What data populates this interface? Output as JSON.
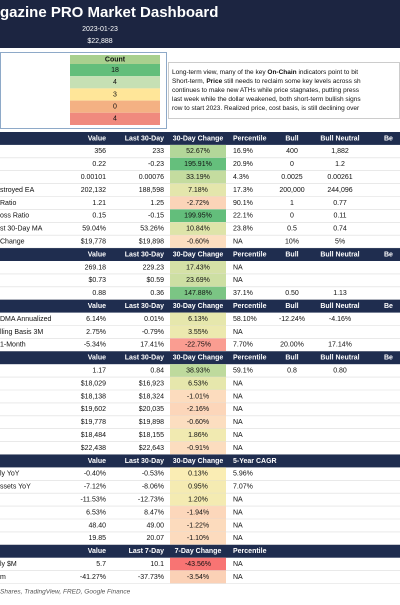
{
  "header": {
    "title": "gazine PRO Market Dashboard",
    "date": "2023-01-23",
    "price": "$22,888"
  },
  "count_panel": {
    "title": "Count",
    "rows": [
      {
        "value": "18",
        "color": "#63be7b"
      },
      {
        "value": "4",
        "color": "#c6e0b4"
      },
      {
        "value": "3",
        "color": "#ffe699"
      },
      {
        "value": "0",
        "color": "#f4b183"
      },
      {
        "value": "4",
        "color": "#f08a7e"
      }
    ]
  },
  "summary": [
    [
      "Long-term view, many of the key ",
      "On-Chain",
      " indicators point to bit"
    ],
    [
      "Short-term, ",
      "Price",
      " still needs to reclaim some key levels across sh"
    ],
    [
      "continues to make new ATHs while price stagnates, putting press"
    ],
    [
      "last week while the dollar weakened, both short-term bullish signs"
    ],
    [
      "row to start 2023. Realized price, cost basis, is still declining over"
    ]
  ],
  "table": {
    "sections": [
      {
        "header": [
          "Value",
          "Last 30-Day",
          "30-Day Change",
          "Percentile",
          "Bull",
          "Bull Neutral",
          "Be"
        ],
        "rows": [
          {
            "cells": [
              "356",
              "233",
              "52.67%",
              "16.9%",
              "400",
              "1,882"
            ]
          },
          {
            "cells": [
              "0.22",
              "-0.23",
              "195.91%",
              "20.9%",
              "0",
              "1.2"
            ]
          },
          {
            "cells": [
              "0.00101",
              "0.00076",
              "33.19%",
              "4.3%",
              "0.0025",
              "0.00261"
            ]
          },
          {
            "label": "stroyed EA",
            "cells": [
              "202,132",
              "188,598",
              "7.18%",
              "17.3%",
              "200,000",
              "244,096"
            ]
          },
          {
            "label": "Ratio",
            "cells": [
              "1.21",
              "1.25",
              "-2.72%",
              "90.1%",
              "1",
              "0.77"
            ]
          },
          {
            "label": "oss Ratio",
            "cells": [
              "0.15",
              "-0.15",
              "199.95%",
              "22.1%",
              "0",
              "0.11"
            ]
          },
          {
            "label": "st 30-Day MA",
            "cells": [
              "59.04%",
              "53.26%",
              "10.84%",
              "23.8%",
              "0.5",
              "0.74"
            ]
          },
          {
            "label": "Change",
            "cells": [
              "$19,778",
              "$19,898",
              "-0.60%",
              "NA",
              "10%",
              "5%"
            ]
          }
        ]
      },
      {
        "header": [
          "Value",
          "Last 30-Day",
          "30-Day Change",
          "Percentile",
          "Bull",
          "Bull Neutral",
          "Be"
        ],
        "rows": [
          {
            "cells": [
              "269.18",
              "229.23",
              "17.43%",
              "NA"
            ]
          },
          {
            "cells": [
              "$0.73",
              "$0.59",
              "23.69%",
              "NA"
            ]
          },
          {
            "cells": [
              "0.88",
              "0.36",
              "147.88%",
              "37.1%",
              "0.50",
              "1.13"
            ]
          }
        ]
      },
      {
        "header": [
          "Value",
          "Last 30-Day",
          "30-Day Change",
          "Percentile",
          "Bull",
          "Bull Neutral",
          "Be"
        ],
        "rows": [
          {
            "label": "DMA Annualized",
            "cells": [
              "6.14%",
              "0.01%",
              "6.13%",
              "58.10%",
              "-12.24%",
              "-4.16%"
            ]
          },
          {
            "label": "lling Basis 3M",
            "cells": [
              "2.75%",
              "-0.79%",
              "3.55%",
              "NA"
            ]
          },
          {
            "label": "1-Month",
            "cells": [
              "-5.34%",
              "17.41%",
              "-22.75%",
              "7.70%",
              "20.00%",
              "17.14%"
            ]
          }
        ]
      },
      {
        "header": [
          "Value",
          "Last 30-Day",
          "30-Day Change",
          "Percentile",
          "Bull",
          "Bull Neutral",
          "Be"
        ],
        "rows": [
          {
            "cells": [
              "1.17",
              "0.84",
              "38.93%",
              "59.1%",
              "0.8",
              "0.80"
            ]
          },
          {
            "cells": [
              "$18,029",
              "$16,923",
              "6.53%",
              "NA"
            ]
          },
          {
            "cells": [
              "$18,138",
              "$18,324",
              "-1.01%",
              "NA"
            ]
          },
          {
            "cells": [
              "$19,602",
              "$20,035",
              "-2.16%",
              "NA"
            ]
          },
          {
            "cells": [
              "$19,778",
              "$19,898",
              "-0.60%",
              "NA"
            ]
          },
          {
            "cells": [
              "$18,484",
              "$18,155",
              "1.86%",
              "NA"
            ]
          },
          {
            "cells": [
              "$22,438",
              "$22,643",
              "-0.91%",
              "NA"
            ]
          }
        ]
      },
      {
        "header": [
          "Value",
          "Last 30-Day",
          "30-Day Change",
          "5-Year CAGR"
        ],
        "rows": [
          {
            "label": "ly YoY",
            "cells": [
              "-0.40%",
              "-0.53%",
              "0.13%",
              "5.96%"
            ]
          },
          {
            "label": "ssets YoY",
            "cells": [
              "-7.12%",
              "-8.06%",
              "0.95%",
              "7.07%"
            ]
          },
          {
            "cells": [
              "-11.53%",
              "-12.73%",
              "1.20%",
              "NA"
            ]
          },
          {
            "cells": [
              "6.53%",
              "8.47%",
              "-1.94%",
              "NA"
            ]
          },
          {
            "cells": [
              "48.40",
              "49.00",
              "-1.22%",
              "NA"
            ]
          },
          {
            "cells": [
              "19.85",
              "20.07",
              "-1.10%",
              "NA"
            ]
          }
        ]
      },
      {
        "header": [
          "Value",
          "Last 7-Day",
          "7-Day Change",
          "Percentile"
        ],
        "rows": [
          {
            "label": "ly $M",
            "cells": [
              "5.7",
              "10.1",
              "-43.56%",
              "NA"
            ]
          },
          {
            "label": "m",
            "cells": [
              "-41.27%",
              "-37.73%",
              "-3.54%",
              "NA"
            ]
          }
        ]
      }
    ]
  },
  "footer": "Shares, TradingView, FRED, Google Finance"
}
